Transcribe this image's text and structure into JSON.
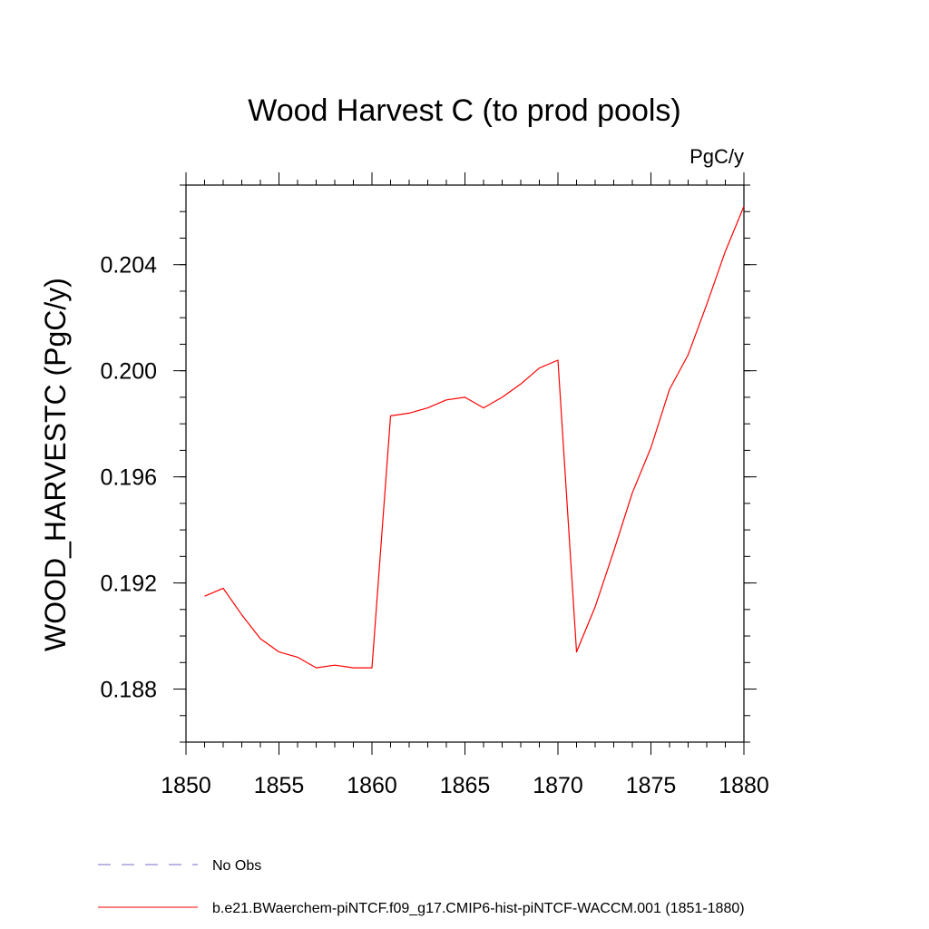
{
  "chart_data": {
    "type": "line",
    "title": "Wood Harvest C (to prod pools)",
    "units_label": "PgC/y",
    "xlabel": "",
    "ylabel": "WOOD_HARVESTC  (PgC/y)",
    "xlim": [
      1850,
      1880
    ],
    "ylim": [
      0.186,
      0.207
    ],
    "x_ticks": [
      1850,
      1855,
      1860,
      1865,
      1870,
      1875,
      1880
    ],
    "x_tick_labels": [
      "1850",
      "1855",
      "1860",
      "1865",
      "1870",
      "1875",
      "1880"
    ],
    "y_ticks": [
      0.188,
      0.192,
      0.196,
      0.2,
      0.204
    ],
    "y_tick_labels": [
      "0.188",
      "0.192",
      "0.196",
      "0.200",
      "0.204"
    ],
    "x_minor_step": 1,
    "y_minor_step": 0.001,
    "grid": false,
    "legend_position": "bottom",
    "series": [
      {
        "name": "b.e21.BWaerchem-piNTCF.f09_g17.CMIP6-hist-piNTCF-WACCM.001 (1851-1880)",
        "color": "#ff0000",
        "dash": "solid",
        "x": [
          1851,
          1852,
          1853,
          1854,
          1855,
          1856,
          1857,
          1858,
          1859,
          1860,
          1861,
          1862,
          1863,
          1864,
          1865,
          1866,
          1867,
          1868,
          1869,
          1870,
          1871,
          1872,
          1873,
          1874,
          1875,
          1876,
          1877,
          1878,
          1879,
          1880
        ],
        "values": [
          0.1915,
          0.1918,
          0.1908,
          0.1899,
          0.1894,
          0.1892,
          0.1888,
          0.1889,
          0.1888,
          0.1888,
          0.1983,
          0.1984,
          0.1986,
          0.1989,
          0.199,
          0.1986,
          0.199,
          0.1995,
          0.2001,
          0.2004,
          0.1894,
          0.1911,
          0.1932,
          0.1954,
          0.1971,
          0.1993,
          0.2006,
          0.2025,
          0.2045,
          0.2062
        ]
      }
    ],
    "legend": [
      {
        "label": "No Obs",
        "color": "#7a6fc4",
        "dash": "dashed"
      },
      {
        "label": "b.e21.BWaerchem-piNTCF.f09_g17.CMIP6-hist-piNTCF-WACCM.001 (1851-1880)",
        "color": "#ff0000",
        "dash": "solid"
      }
    ]
  }
}
